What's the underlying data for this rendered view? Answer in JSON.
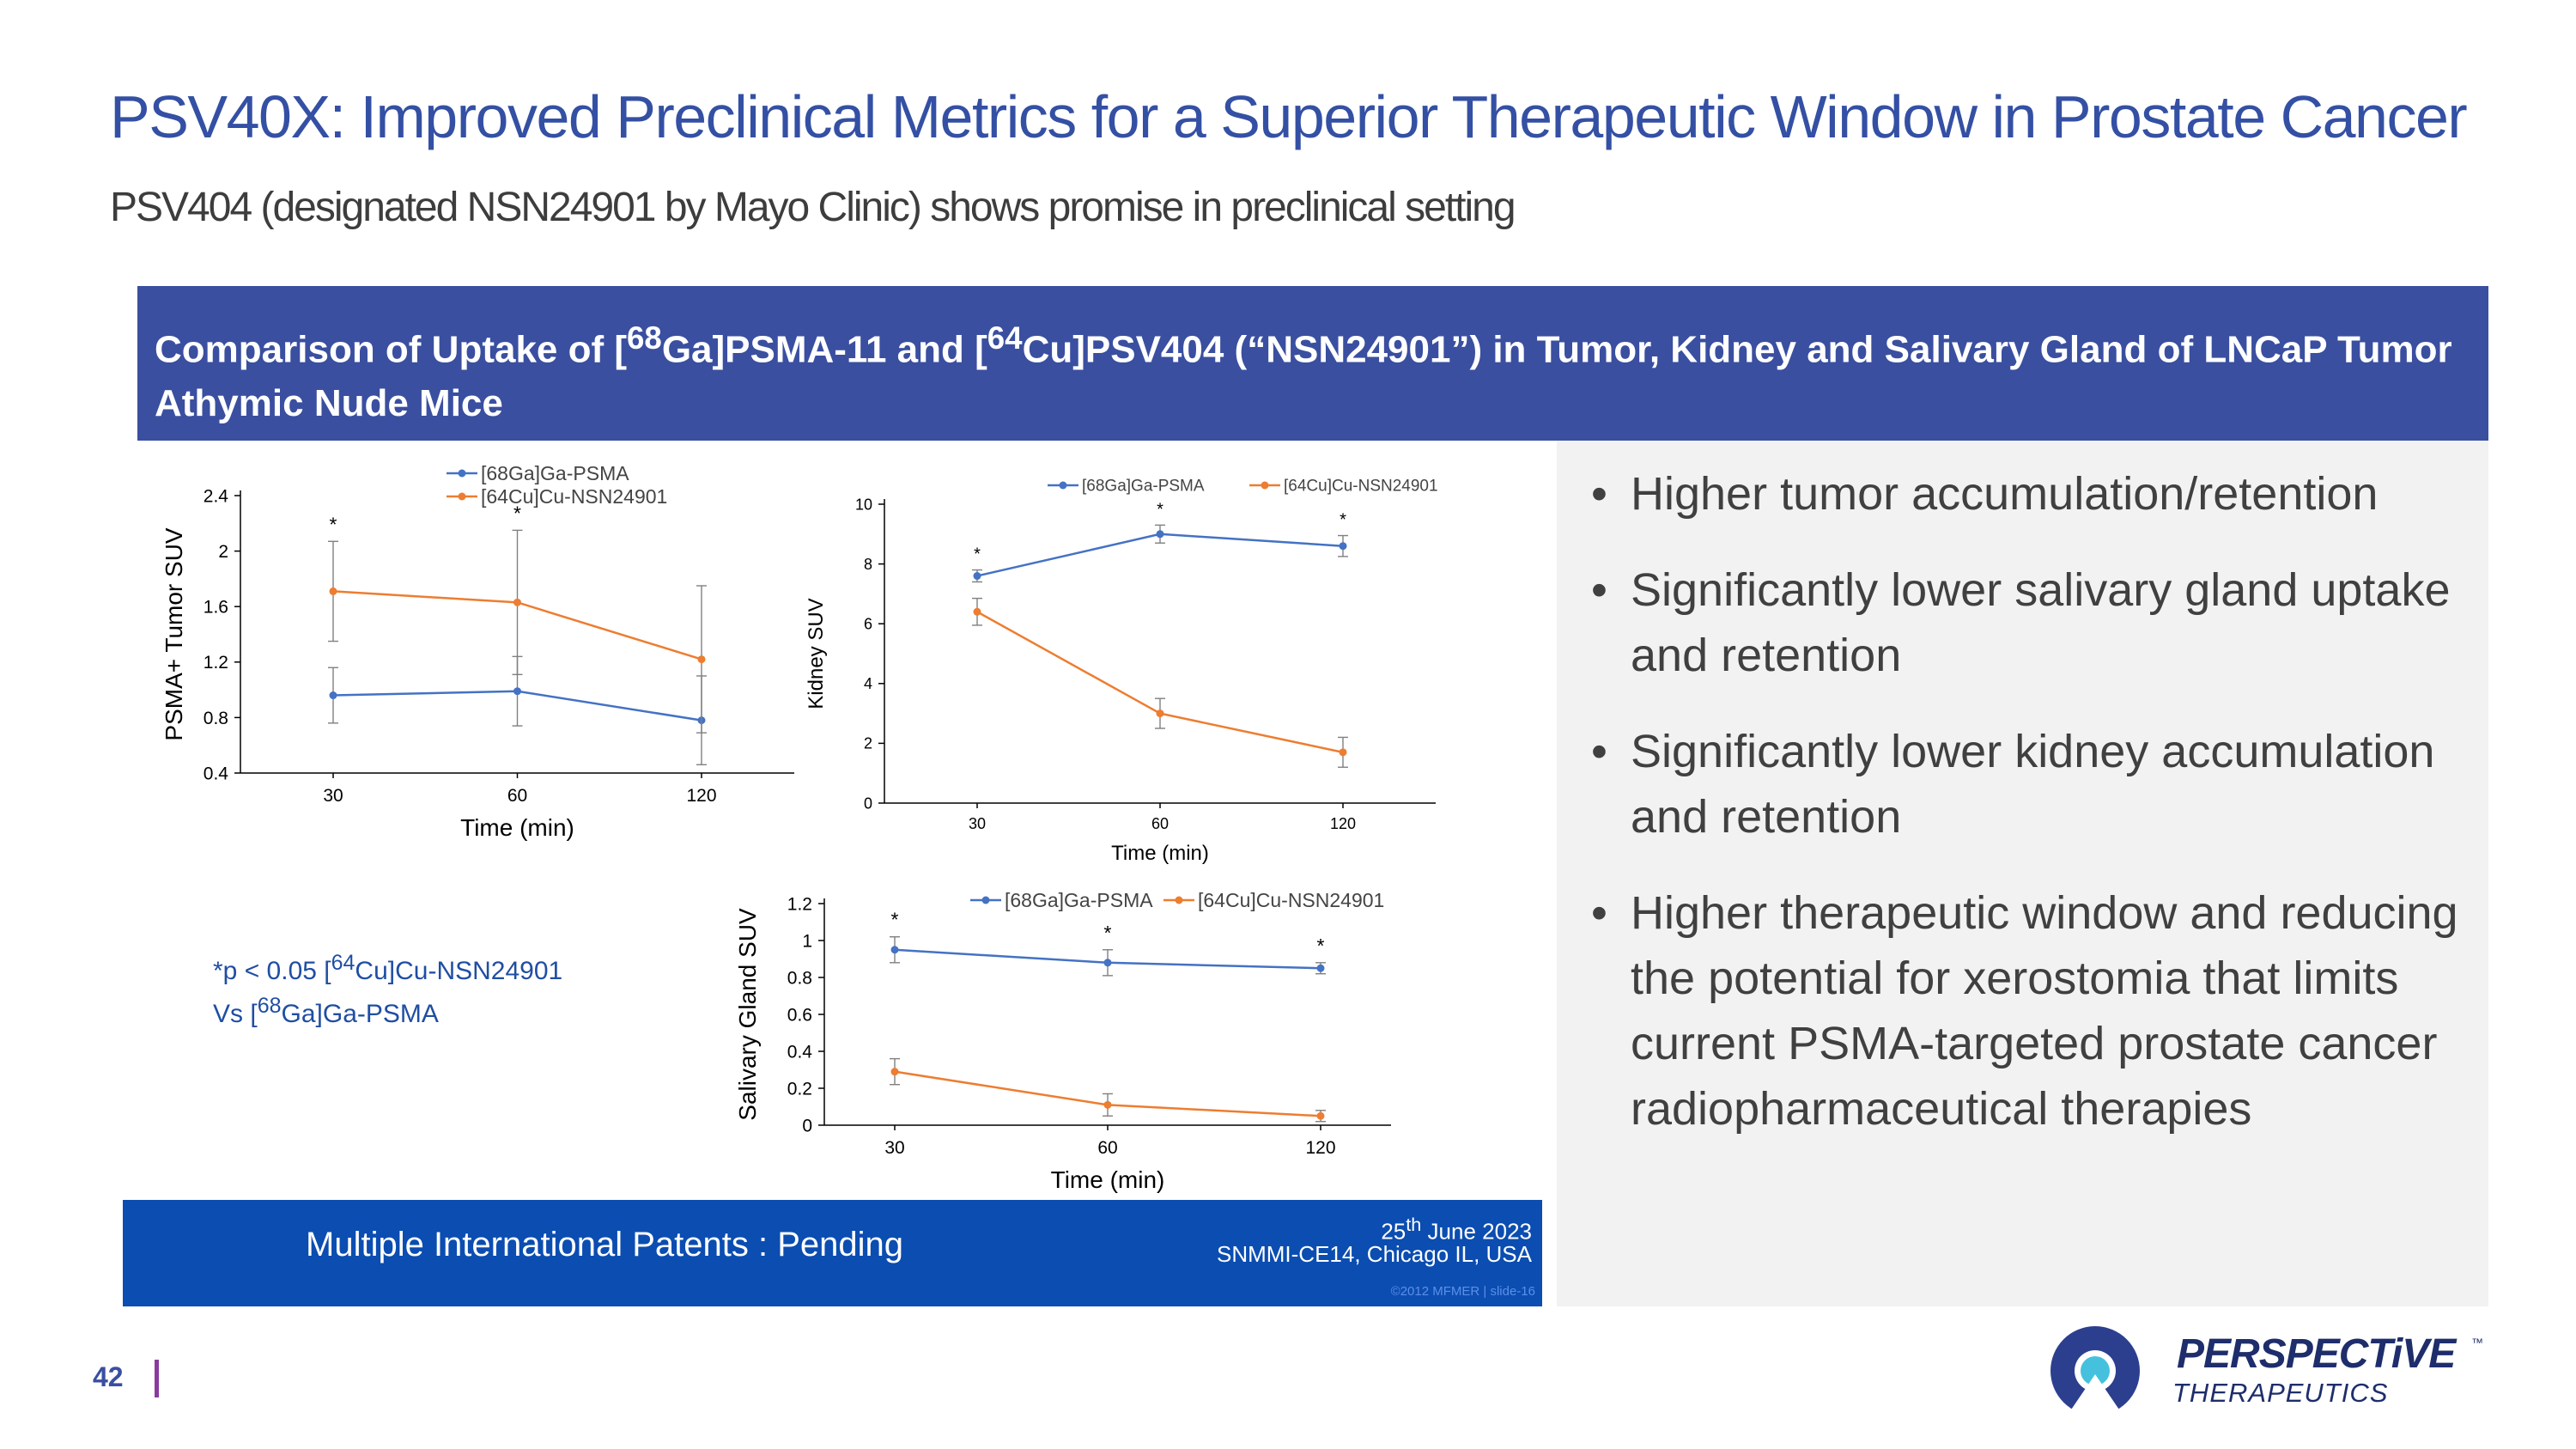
{
  "title": "PSV40X: Improved Preclinical Metrics for a Superior Therapeutic Window in Prostate Cancer",
  "subtitle": "PSV404 (designated NSN24901 by Mayo Clinic) shows promise in preclinical setting",
  "banner": {
    "p1": "Comparison of Uptake of [",
    "s1": "68",
    "p2": "Ga]PSMA-11 and [",
    "s2": "64",
    "p3": "Cu]PSV404 (“NSN24901”) in Tumor, Kidney and Salivary Gland of LNCaP Tumor Athymic Nude Mice"
  },
  "bullets": [
    "Higher tumor accumulation/retention",
    "Significantly lower salivary gland uptake and retention",
    "Significantly lower kidney accumulation and retention",
    "Higher therapeutic window and reducing the potential for xerostomia that limits current PSMA-targeted prostate cancer radiopharmaceutical therapies"
  ],
  "bullet_symbol": "•",
  "footnote": {
    "p1": "*p < 0.05 [",
    "s1": "64",
    "p2": "Cu]Cu-NSN24901",
    "p3": "Vs [",
    "s2": "68",
    "p4": "Ga]Ga-PSMA"
  },
  "patents": {
    "text": "Multiple International Patents : Pending",
    "date_pre": "25",
    "date_sup": "th",
    "date_post": " June 2023",
    "conference": "SNMMI-CE14, Chicago IL, USA",
    "copyright": "©2012 MFMER  |  slide-16"
  },
  "page_number": "42",
  "logo": {
    "name": "PERSPECTiVE",
    "tm": "™",
    "tagline": "THERAPEUTICS"
  },
  "colors": {
    "title": "#3450a4",
    "banner": "#3a4fa0",
    "ga_series": "#4472c4",
    "cu_series": "#ed7d31",
    "patent_bar": "#0b4db1"
  },
  "chart_data": [
    {
      "type": "line",
      "xlabel": "Time (min)",
      "ylabel": "PSMA+ Tumor SUV",
      "categories": [
        "30",
        "60",
        "120"
      ],
      "ylim": [
        0.4,
        2.4
      ],
      "yticks": [
        "0.4",
        "0.8",
        "1.2",
        "1.6",
        "2",
        "2.4"
      ],
      "legend_position": "top",
      "significance": [
        true,
        true,
        false
      ],
      "series": [
        {
          "name": "[68Ga]Ga-PSMA",
          "color": "#4472c4",
          "values": [
            0.96,
            0.99,
            0.78
          ],
          "errors": [
            0.2,
            0.25,
            0.32
          ]
        },
        {
          "name": "[64Cu]Cu-NSN24901",
          "color": "#ed7d31",
          "values": [
            1.71,
            1.63,
            1.22
          ],
          "errors": [
            0.36,
            0.52,
            0.53
          ]
        }
      ]
    },
    {
      "type": "line",
      "xlabel": "Time (min)",
      "ylabel": "Kidney SUV",
      "categories": [
        "30",
        "60",
        "120"
      ],
      "ylim": [
        0,
        10
      ],
      "yticks": [
        "0",
        "2",
        "4",
        "6",
        "8",
        "10"
      ],
      "legend_position": "top",
      "significance": [
        true,
        true,
        true
      ],
      "series": [
        {
          "name": "[68Ga]Ga-PSMA",
          "color": "#4472c4",
          "values": [
            7.6,
            9.0,
            8.6
          ],
          "errors": [
            0.2,
            0.3,
            0.35
          ]
        },
        {
          "name": "[64Cu]Cu-NSN24901",
          "color": "#ed7d31",
          "values": [
            6.4,
            3.0,
            1.7
          ],
          "errors": [
            0.45,
            0.5,
            0.5
          ]
        }
      ]
    },
    {
      "type": "line",
      "xlabel": "Time (min)",
      "ylabel": "Salivary Gland SUV",
      "categories": [
        "30",
        "60",
        "120"
      ],
      "ylim": [
        0,
        1.2
      ],
      "yticks": [
        "0",
        "0.2",
        "0.4",
        "0.6",
        "0.8",
        "1",
        "1.2"
      ],
      "legend_position": "top",
      "significance": [
        true,
        true,
        true
      ],
      "series": [
        {
          "name": "[68Ga]Ga-PSMA",
          "color": "#4472c4",
          "values": [
            0.95,
            0.88,
            0.85
          ],
          "errors": [
            0.07,
            0.07,
            0.03
          ]
        },
        {
          "name": "[64Cu]Cu-NSN24901",
          "color": "#ed7d31",
          "values": [
            0.29,
            0.11,
            0.05
          ],
          "errors": [
            0.07,
            0.06,
            0.03
          ]
        }
      ]
    }
  ]
}
